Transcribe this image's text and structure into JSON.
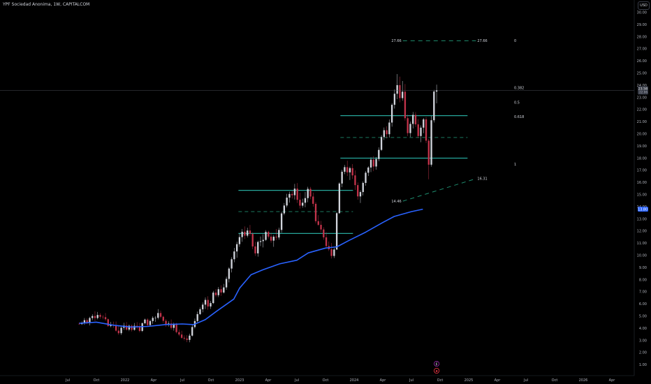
{
  "header": {
    "title": "YPF Sociedad Anonima, 1W, CAPITALCOM",
    "currency": "USD"
  },
  "colors": {
    "background": "#000000",
    "up_candle": "#d1d4dc",
    "down_candle": "#c2334a",
    "moving_average": "#2962ff",
    "support_lines": "#26a69a",
    "dashed_lines": "#1e8c6e",
    "axis_text": "#b2b5be"
  },
  "chart_data": {
    "type": "candlestick",
    "title": "YPF Sociedad Anonima, 1W, CAPITALCOM",
    "xlabel": "",
    "ylabel": "",
    "x_ticks": [
      "Jul",
      "Oct",
      "2022",
      "Apr",
      "Jul",
      "Oct",
      "2023",
      "Apr",
      "Jul",
      "Oct",
      "2024",
      "Apr",
      "Jul",
      "Oct",
      "2025",
      "Apr",
      "Jul",
      "Oct",
      "2026",
      "Apr"
    ],
    "y_ticks": [
      "1.00",
      "2.00",
      "3.00",
      "4.00",
      "5.00",
      "6.00",
      "7.00",
      "8.00",
      "9.00",
      "10.00",
      "11.00",
      "12.00",
      "13.00",
      "14.00",
      "15.00",
      "16.00",
      "17.00",
      "18.00",
      "19.00",
      "20.00",
      "21.00",
      "22.00",
      "23.00",
      "24.00",
      "25.00",
      "26.00",
      "27.00",
      "28.00",
      "29.00",
      "30.00"
    ],
    "ylim": [
      0.5,
      30.5
    ],
    "xlim": [
      2021.4,
      2026.4
    ],
    "price_labels": {
      "last": "23.58",
      "countdown": "22.06",
      "ma": "13.80"
    },
    "ma_last": 13.8,
    "fib_levels": [
      {
        "label": "0",
        "value": 27.66
      },
      {
        "label": "0.382",
        "value": 23.8
      },
      {
        "label": "0.5",
        "value": 22.6
      },
      {
        "label": "0.618",
        "value": 21.4
      },
      {
        "label": "1",
        "value": 17.5
      }
    ],
    "horizontal_levels": [
      {
        "value": 21.5,
        "x_start": 2023.88,
        "x_end": 2024.99,
        "style": "solid"
      },
      {
        "value": 19.7,
        "x_start": 2023.88,
        "x_end": 2024.99,
        "style": "dashed"
      },
      {
        "value": 18.0,
        "x_start": 2023.88,
        "x_end": 2024.99,
        "style": "solid"
      },
      {
        "value": 15.35,
        "x_start": 2022.99,
        "x_end": 2023.99,
        "style": "solid"
      },
      {
        "value": 13.6,
        "x_start": 2022.99,
        "x_end": 2023.99,
        "style": "dashed"
      },
      {
        "value": 11.8,
        "x_start": 2022.99,
        "x_end": 2023.99,
        "style": "solid"
      }
    ],
    "target_line": {
      "value": 27.66,
      "x_start": 2024.34,
      "x_end": 2025.1,
      "label_left": "27.66",
      "label_right": "27.66"
    },
    "trend_line": {
      "start": {
        "x": 2024.34,
        "y": 14.46
      },
      "end": {
        "x": 2025.1,
        "y": 16.31
      },
      "label_start": "14.46",
      "label_end": "16.31"
    },
    "ma_series": [
      [
        2021.6,
        4.4
      ],
      [
        2021.75,
        4.5
      ],
      [
        2021.9,
        4.25
      ],
      [
        2022.05,
        4.1
      ],
      [
        2022.2,
        4.15
      ],
      [
        2022.35,
        4.3
      ],
      [
        2022.5,
        4.35
      ],
      [
        2022.6,
        4.3
      ],
      [
        2022.7,
        4.7
      ],
      [
        2022.8,
        5.4
      ],
      [
        2022.95,
        6.4
      ],
      [
        2023.0,
        7.3
      ],
      [
        2023.1,
        8.4
      ],
      [
        2023.2,
        8.8
      ],
      [
        2023.35,
        9.3
      ],
      [
        2023.5,
        9.6
      ],
      [
        2023.6,
        10.2
      ],
      [
        2023.75,
        10.6
      ],
      [
        2023.85,
        10.7
      ],
      [
        2023.95,
        11.2
      ],
      [
        2024.1,
        11.9
      ],
      [
        2024.25,
        12.7
      ],
      [
        2024.35,
        13.2
      ],
      [
        2024.5,
        13.6
      ],
      [
        2024.6,
        13.8
      ]
    ],
    "candles": [
      [
        4.36,
        4.47,
        4.3,
        4.34
      ],
      [
        4.34,
        4.56,
        4.28,
        4.42
      ],
      [
        4.42,
        4.84,
        4.28,
        4.66
      ],
      [
        4.66,
        4.8,
        4.35,
        4.44
      ],
      [
        4.44,
        4.94,
        4.23,
        4.84
      ],
      [
        4.84,
        5.15,
        4.66,
        5.0
      ],
      [
        5.0,
        5.4,
        4.58,
        4.84
      ],
      [
        4.84,
        5.34,
        4.73,
        5.09
      ],
      [
        5.09,
        5.24,
        4.78,
        4.94
      ],
      [
        4.94,
        5.09,
        4.73,
        4.91
      ],
      [
        4.91,
        5.25,
        4.61,
        4.74
      ],
      [
        4.74,
        4.81,
        4.12,
        4.18
      ],
      [
        4.18,
        4.52,
        4.08,
        4.29
      ],
      [
        4.29,
        4.54,
        4.04,
        4.25
      ],
      [
        4.25,
        4.55,
        3.71,
        3.8
      ],
      [
        3.8,
        4.16,
        3.46,
        3.59
      ],
      [
        3.59,
        4.23,
        3.45,
        4.04
      ],
      [
        4.04,
        4.45,
        3.86,
        4.22
      ],
      [
        4.22,
        4.51,
        3.8,
        3.89
      ],
      [
        3.89,
        4.3,
        3.76,
        4.2
      ],
      [
        4.2,
        4.3,
        3.73,
        3.87
      ],
      [
        3.87,
        4.43,
        3.8,
        4.2
      ],
      [
        4.2,
        4.5,
        3.92,
        4.14
      ],
      [
        4.14,
        4.43,
        3.66,
        3.78
      ],
      [
        3.78,
        4.48,
        3.69,
        4.41
      ],
      [
        4.41,
        4.79,
        4.32,
        4.71
      ],
      [
        4.71,
        4.82,
        4.13,
        4.26
      ],
      [
        4.26,
        4.71,
        4.18,
        4.59
      ],
      [
        4.59,
        4.98,
        4.36,
        4.85
      ],
      [
        4.85,
        5.0,
        4.52,
        4.86
      ],
      [
        4.86,
        5.57,
        4.73,
        5.25
      ],
      [
        5.25,
        5.45,
        4.81,
        4.94
      ],
      [
        4.94,
        5.03,
        4.43,
        4.61
      ],
      [
        4.61,
        4.75,
        4.11,
        4.28
      ],
      [
        4.28,
        4.57,
        4.14,
        4.39
      ],
      [
        4.39,
        4.72,
        3.88,
        4.03
      ],
      [
        4.03,
        4.46,
        3.8,
        4.32
      ],
      [
        4.32,
        4.44,
        3.58,
        3.68
      ],
      [
        3.68,
        3.89,
        3.35,
        3.48
      ],
      [
        3.48,
        3.79,
        3.13,
        3.21
      ],
      [
        3.21,
        3.41,
        3.0,
        3.15
      ],
      [
        3.15,
        3.43,
        2.85,
        3.04
      ],
      [
        3.04,
        3.55,
        2.84,
        3.39
      ],
      [
        3.39,
        4.28,
        3.32,
        4.1
      ],
      [
        4.1,
        4.8,
        3.98,
        4.59
      ],
      [
        4.59,
        5.37,
        4.49,
        5.16
      ],
      [
        5.16,
        5.71,
        5.09,
        5.56
      ],
      [
        5.56,
        6.12,
        5.31,
        5.94
      ],
      [
        5.94,
        6.53,
        5.58,
        6.33
      ],
      [
        6.33,
        6.63,
        5.52,
        5.79
      ],
      [
        5.79,
        6.24,
        5.59,
        6.07
      ],
      [
        6.07,
        7.07,
        6.0,
        6.93
      ],
      [
        6.93,
        7.22,
        6.55,
        6.72
      ],
      [
        6.72,
        7.39,
        6.56,
        7.21
      ],
      [
        7.21,
        7.53,
        6.67,
        6.94
      ],
      [
        6.94,
        7.65,
        6.86,
        7.36
      ],
      [
        7.36,
        8.24,
        7.16,
        8.06
      ],
      [
        8.06,
        9.02,
        7.77,
        8.91
      ],
      [
        8.91,
        9.84,
        8.59,
        9.68
      ],
      [
        9.68,
        10.61,
        9.43,
        10.32
      ],
      [
        10.32,
        11.12,
        9.8,
        10.92
      ],
      [
        10.92,
        11.8,
        10.7,
        11.5
      ],
      [
        11.5,
        12.17,
        11.11,
        11.94
      ],
      [
        11.94,
        12.38,
        11.34,
        11.62
      ],
      [
        11.62,
        12.27,
        11.47,
        12.04
      ],
      [
        12.04,
        12.5,
        11.6,
        11.76
      ],
      [
        11.76,
        11.88,
        10.51,
        10.73
      ],
      [
        10.73,
        11.11,
        9.95,
        10.16
      ],
      [
        10.16,
        11.21,
        9.89,
        11.1
      ],
      [
        11.1,
        11.55,
        10.76,
        11.17
      ],
      [
        11.17,
        11.73,
        10.65,
        11.27
      ],
      [
        11.27,
        12.07,
        11.18,
        11.93
      ],
      [
        11.93,
        12.03,
        11.39,
        11.54
      ],
      [
        11.54,
        11.86,
        11.04,
        11.21
      ],
      [
        11.21,
        11.67,
        10.7,
        11.53
      ],
      [
        11.53,
        12.17,
        11.25,
        11.47
      ],
      [
        11.47,
        12.28,
        11.29,
        12.09
      ],
      [
        12.09,
        13.58,
        11.86,
        13.45
      ],
      [
        13.45,
        14.31,
        13.3,
        14.1
      ],
      [
        14.1,
        15.06,
        13.94,
        14.75
      ],
      [
        14.75,
        15.24,
        14.34,
        15.05
      ],
      [
        15.05,
        15.3,
        14.68,
        14.95
      ],
      [
        14.95,
        15.88,
        14.59,
        15.49
      ],
      [
        15.49,
        15.95,
        14.31,
        14.57
      ],
      [
        14.57,
        15.16,
        13.85,
        14.09
      ],
      [
        14.09,
        14.66,
        13.92,
        14.33
      ],
      [
        14.33,
        15.22,
        13.96,
        14.71
      ],
      [
        14.71,
        15.64,
        14.37,
        15.47
      ],
      [
        15.47,
        15.63,
        14.62,
        14.84
      ],
      [
        14.84,
        15.16,
        14.01,
        14.24
      ],
      [
        14.24,
        14.39,
        12.63,
        12.81
      ],
      [
        12.81,
        13.31,
        12.42,
        12.51
      ],
      [
        12.51,
        12.83,
        11.9,
        12.13
      ],
      [
        12.13,
        12.31,
        11.28,
        11.48
      ],
      [
        11.48,
        11.9,
        10.6,
        10.76
      ],
      [
        10.76,
        11.14,
        10.35,
        10.5
      ],
      [
        10.5,
        11.01,
        9.74,
        9.95
      ],
      [
        9.95,
        10.6,
        9.78,
        10.48
      ],
      [
        10.48,
        13.55,
        10.44,
        13.47
      ],
      [
        13.47,
        16.01,
        13.41,
        15.91
      ],
      [
        15.91,
        17.04,
        15.61,
        16.88
      ],
      [
        16.88,
        17.44,
        16.68,
        17.26
      ],
      [
        17.26,
        17.79,
        16.53,
        16.83
      ],
      [
        16.83,
        17.3,
        16.2,
        17.18
      ],
      [
        17.18,
        17.51,
        16.29,
        16.58
      ],
      [
        16.58,
        16.99,
        15.38,
        15.78
      ],
      [
        15.78,
        16.0,
        14.58,
        14.85
      ],
      [
        14.85,
        15.35,
        14.31,
        15.21
      ],
      [
        15.21,
        16.08,
        14.93,
        15.96
      ],
      [
        15.96,
        16.93,
        15.73,
        16.8
      ],
      [
        16.8,
        17.33,
        16.53,
        17.23
      ],
      [
        17.23,
        18.06,
        16.85,
        17.88
      ],
      [
        17.88,
        18.16,
        16.93,
        17.31
      ],
      [
        17.31,
        18.09,
        17.05,
        17.93
      ],
      [
        17.93,
        18.89,
        17.74,
        18.68
      ],
      [
        18.68,
        19.89,
        18.59,
        19.74
      ],
      [
        19.74,
        20.52,
        19.49,
        20.3
      ],
      [
        20.3,
        20.62,
        19.62,
        19.97
      ],
      [
        19.97,
        21.18,
        19.69,
        20.93
      ],
      [
        20.93,
        22.53,
        20.59,
        22.39
      ],
      [
        22.39,
        23.65,
        22.08,
        23.3
      ],
      [
        23.3,
        24.92,
        22.85,
        24.01
      ],
      [
        24.01,
        24.71,
        22.59,
        22.94
      ],
      [
        22.94,
        24.35,
        22.73,
        23.47
      ],
      [
        23.47,
        24.1,
        21.09,
        21.29
      ],
      [
        21.29,
        21.58,
        19.82,
        20.06
      ],
      [
        20.06,
        21.01,
        19.74,
        20.82
      ],
      [
        20.82,
        21.8,
        20.44,
        21.56
      ],
      [
        21.56,
        21.79,
        20.57,
        20.78
      ],
      [
        20.78,
        21.21,
        19.67,
        19.82
      ],
      [
        19.82,
        20.7,
        19.31,
        20.51
      ],
      [
        20.51,
        21.3,
        20.05,
        21.19
      ],
      [
        21.19,
        21.38,
        19.24,
        19.44
      ],
      [
        19.44,
        19.58,
        16.26,
        17.46
      ],
      [
        17.46,
        21.48,
        17.3,
        21.12
      ],
      [
        21.12,
        23.62,
        20.93,
        23.48
      ],
      [
        23.48,
        24.05,
        22.51,
        23.58
      ]
    ]
  }
}
